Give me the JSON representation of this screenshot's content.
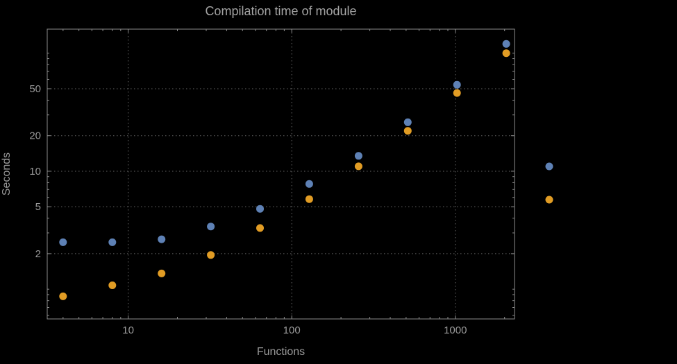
{
  "chart_data": {
    "type": "scatter",
    "title": "Compilation time of module",
    "xlabel": "Functions",
    "ylabel": "Seconds",
    "x_scale": "log",
    "y_scale": "log",
    "grid": true,
    "x_ticks": [
      10,
      100,
      1000
    ],
    "y_ticks": [
      2,
      5,
      10,
      20,
      50
    ],
    "x_range": [
      3.2,
      2300
    ],
    "y_range": [
      0.56,
      160
    ],
    "x": [
      4,
      8,
      16,
      32,
      64,
      128,
      256,
      512,
      1024,
      2048
    ],
    "series": [
      {
        "name": "blue-series",
        "color": "#5E81B5",
        "values": [
          2.5,
          2.5,
          2.65,
          3.4,
          4.8,
          7.8,
          13.5,
          26,
          54,
          120
        ]
      },
      {
        "name": "orange-series",
        "color": "#E19C24",
        "values": [
          0.87,
          1.08,
          1.36,
          1.95,
          3.3,
          5.8,
          11,
          22,
          46,
          100
        ]
      }
    ],
    "legend": {
      "position": "right",
      "markers": [
        "#5E81B5",
        "#E19C24"
      ]
    }
  },
  "colors": {
    "background": "#000000",
    "text": "#9a9a9a",
    "title_text": "#a4a4a4",
    "grid": "#666666",
    "frame": "#8c8c8c",
    "series_blue": "#5E81B5",
    "series_orange": "#E19C24"
  }
}
